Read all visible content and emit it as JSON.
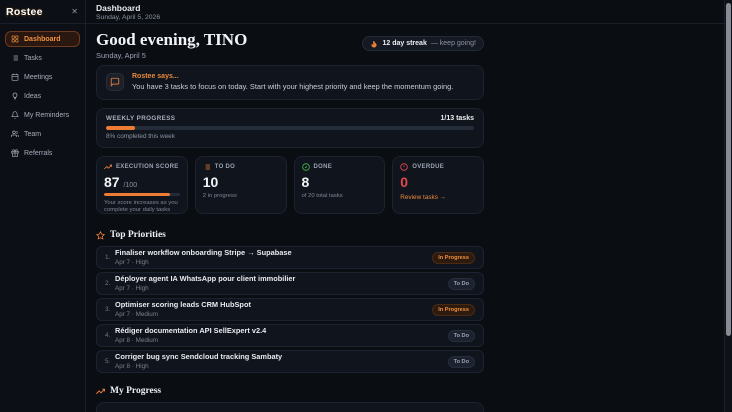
{
  "accent_color": "#ee8138",
  "danger_color": "#e5484d",
  "success_color": "#3fb950",
  "logo": "Rostee",
  "sidebar": {
    "items": [
      {
        "label": "Dashboard"
      },
      {
        "label": "Tasks"
      },
      {
        "label": "Meetings"
      },
      {
        "label": "Ideas"
      },
      {
        "label": "My Reminders"
      },
      {
        "label": "Team"
      },
      {
        "label": "Referrals"
      }
    ]
  },
  "header": {
    "title": "Dashboard",
    "date": "Sunday, April 5, 2026"
  },
  "greeting": {
    "title": "Good evening, TINO",
    "date": "Sunday, April 5"
  },
  "streak": {
    "label": "12 day streak",
    "suffix": "— keep going!"
  },
  "assistant": {
    "title": "Rostee says...",
    "message": "You have 3 tasks to focus on today. Start with your highest priority and keep the momentum going."
  },
  "weekly_progress": {
    "label": "WEEKLY PROGRESS",
    "count": "1/13 tasks",
    "percent": 8,
    "caption": "8% completed this week"
  },
  "stats": {
    "execution": {
      "label": "EXECUTION SCORE",
      "value": "87",
      "max": "/100",
      "percent": 87,
      "caption": "Your score increases as you complete your daily tasks"
    },
    "todo": {
      "label": "TO DO",
      "value": "10",
      "caption": "2 in progress"
    },
    "done": {
      "label": "DONE",
      "value": "8",
      "caption": "of 20 total tasks"
    },
    "overdue": {
      "label": "OVERDUE",
      "value": "0",
      "link": "Review tasks →"
    }
  },
  "priorities": {
    "title": "Top Priorities",
    "items": [
      {
        "num": "1.",
        "title": "Finaliser workflow onboarding Stripe → Supabase",
        "meta": "Apr 7 · High",
        "status": "In Progress"
      },
      {
        "num": "2.",
        "title": "Déployer agent IA WhatsApp pour client immobilier",
        "meta": "Apr 7 · High",
        "status": "To Do"
      },
      {
        "num": "3.",
        "title": "Optimiser scoring leads CRM HubSpot",
        "meta": "Apr 7 · Medium",
        "status": "In Progress"
      },
      {
        "num": "4.",
        "title": "Rédiger documentation API SellExpert v2.4",
        "meta": "Apr 8 · Medium",
        "status": "To Do"
      },
      {
        "num": "5.",
        "title": "Corriger bug sync Sendcloud tracking Sambaty",
        "meta": "Apr 8 · High",
        "status": "To Do"
      }
    ]
  },
  "my_progress": {
    "title": "My Progress"
  }
}
